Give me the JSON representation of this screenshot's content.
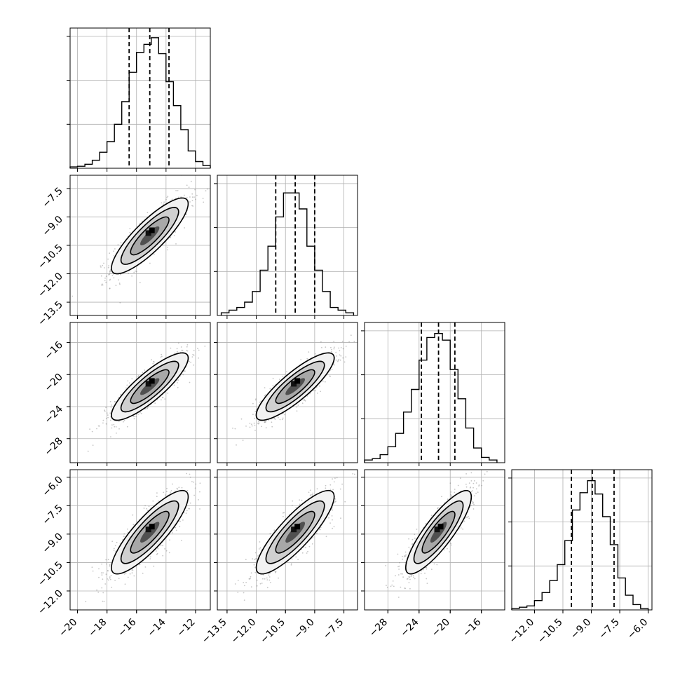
{
  "chart_data": {
    "type": "corner",
    "grid": true,
    "n_params": 4,
    "params": [
      {
        "range": [
          -20.5,
          -11
        ],
        "ticks": [
          -20,
          -18,
          -16,
          -14,
          -12
        ],
        "tick_labels": [
          "−20",
          "−18",
          "−16",
          "−14",
          "−12"
        ],
        "quantiles": [
          -16.5,
          -15.1,
          -13.8
        ],
        "hist_bins": [
          -20.5,
          -20.0,
          -19.5,
          -19.0,
          -18.5,
          -18.0,
          -17.5,
          -17.0,
          -16.5,
          -16.0,
          -15.5,
          -15.0,
          -14.5,
          -14.0,
          -13.5,
          -13.0,
          -12.5,
          -12.0,
          -11.5,
          -11.0
        ],
        "hist_values": [
          0.01,
          0.015,
          0.03,
          0.06,
          0.12,
          0.2,
          0.33,
          0.5,
          0.72,
          0.87,
          0.93,
          0.98,
          0.86,
          0.65,
          0.47,
          0.29,
          0.13,
          0.05,
          0.02
        ]
      },
      {
        "range": [
          -14,
          -6.8
        ],
        "ticks": [
          -13.5,
          -12.0,
          -10.5,
          -9.0,
          -7.5
        ],
        "tick_labels": [
          "−13.5",
          "−12.0",
          "−10.5",
          "−9.0",
          "−7.5"
        ],
        "quantiles": [
          -11.0,
          -10.0,
          -9.0
        ],
        "hist_bins": [
          -13.8,
          -13.4,
          -13.0,
          -12.6,
          -12.2,
          -11.8,
          -11.4,
          -11.0,
          -10.6,
          -10.2,
          -9.8,
          -9.4,
          -9.0,
          -8.6,
          -8.2,
          -7.8,
          -7.4,
          -7.0
        ],
        "hist_values": [
          0.02,
          0.04,
          0.06,
          0.1,
          0.18,
          0.34,
          0.52,
          0.74,
          0.92,
          0.92,
          0.8,
          0.52,
          0.34,
          0.18,
          0.06,
          0.04,
          0.02
        ]
      },
      {
        "range": [
          -31,
          -13
        ],
        "ticks": [
          -28,
          -24,
          -20,
          -16
        ],
        "tick_labels": [
          "−28",
          "−24",
          "−20",
          "−16"
        ],
        "quantiles": [
          -23.7,
          -21.5,
          -19.4
        ],
        "hist_bins": [
          -31,
          -30,
          -29,
          -28,
          -27,
          -26,
          -25,
          -24,
          -23,
          -22,
          -21,
          -20,
          -19,
          -18,
          -17,
          -16,
          -15,
          -14
        ],
        "hist_values": [
          0.02,
          0.03,
          0.06,
          0.12,
          0.22,
          0.38,
          0.55,
          0.77,
          0.94,
          0.97,
          0.92,
          0.7,
          0.48,
          0.26,
          0.11,
          0.04,
          0.02
        ]
      },
      {
        "range": [
          -13.2,
          -5.8
        ],
        "ticks": [
          -12.0,
          -10.5,
          -9.0,
          -7.5,
          -6.0
        ],
        "tick_labels": [
          "−12.0",
          "−10.5",
          "−9.0",
          "−7.5",
          "−6.0"
        ],
        "quantiles": [
          -10.05,
          -8.95,
          -7.8
        ],
        "hist_bins": [
          -13.2,
          -12.8,
          -12.4,
          -12.0,
          -11.6,
          -11.2,
          -10.8,
          -10.4,
          -10.0,
          -9.6,
          -9.2,
          -8.8,
          -8.4,
          -8.0,
          -7.6,
          -7.2,
          -6.8,
          -6.4,
          -6.0
        ],
        "hist_values": [
          0.01,
          0.02,
          0.03,
          0.07,
          0.13,
          0.22,
          0.34,
          0.52,
          0.75,
          0.88,
          0.97,
          0.87,
          0.7,
          0.49,
          0.24,
          0.11,
          0.04,
          0.01
        ]
      }
    ],
    "y_axis_ranges": {
      "1": [
        -14.2,
        -6.8
      ],
      "2": [
        -31,
        -13.5
      ],
      "3": [
        -13,
        -5.6
      ]
    },
    "y_ticks": {
      "1": {
        "values": [
          -13.5,
          -12.0,
          -10.5,
          -9.0,
          -7.5
        ],
        "labels": [
          "−13.5",
          "−12.0",
          "−10.5",
          "−9.0",
          "−7.5"
        ]
      },
      "2": {
        "values": [
          -28,
          -24,
          -20,
          -16
        ],
        "labels": [
          "−28",
          "−24",
          "−20",
          "−16"
        ]
      },
      "3": {
        "values": [
          -12.0,
          -10.5,
          -9.0,
          -7.5,
          -6.0
        ],
        "labels": [
          "−12.0",
          "−10.5",
          "−9.0",
          "−7.5",
          "−6.0"
        ]
      }
    },
    "means": [
      -15.1,
      -10.0,
      -21.5,
      -8.9
    ],
    "stds": [
      1.3,
      1.0,
      2.1,
      1.1
    ],
    "correlation": 0.85
  }
}
